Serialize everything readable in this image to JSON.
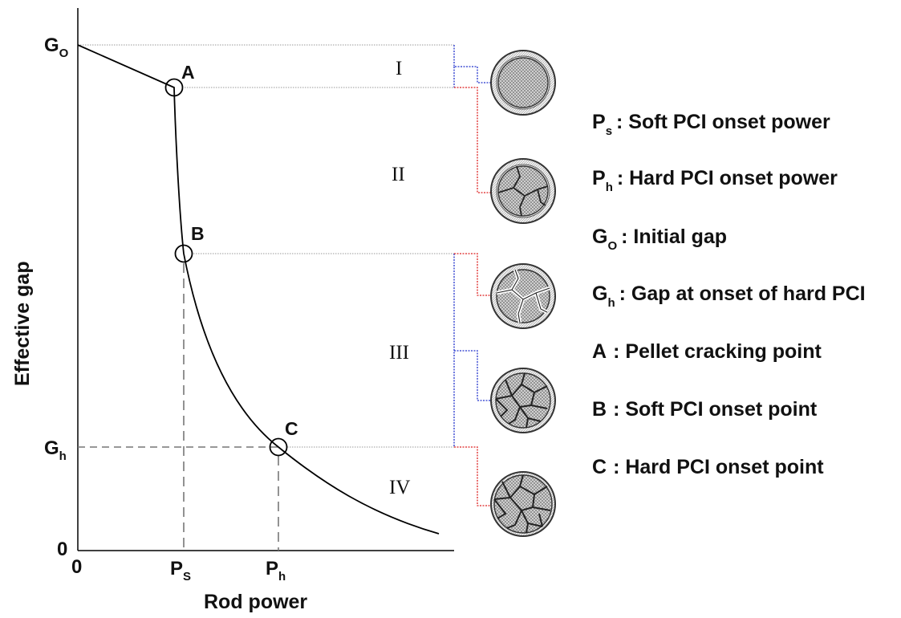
{
  "axes": {
    "y_title": "Effective gap",
    "x_title": "Rod power",
    "y_origin": "0",
    "x_origin": "0",
    "y_ticks": [
      {
        "main": "G",
        "sub": "O"
      },
      {
        "main": "G",
        "sub": "h"
      }
    ],
    "x_ticks": [
      {
        "main": "P",
        "sub": "S"
      },
      {
        "main": "P",
        "sub": "h"
      }
    ]
  },
  "points": [
    "A",
    "B",
    "C"
  ],
  "regions": [
    "I",
    "II",
    "III",
    "IV"
  ],
  "legend": [
    {
      "sym": "P",
      "sub": "s",
      "desc": ": Soft PCI onset power"
    },
    {
      "sym": "P",
      "sub": "h",
      "desc": ": Hard PCI onset power"
    },
    {
      "sym": "G",
      "sub": "O",
      "desc": ": Initial gap"
    },
    {
      "sym": "G",
      "sub": "h",
      "desc": ": Gap at onset of hard PCI"
    },
    {
      "sym": "A",
      "sub": "",
      "desc": ": Pellet cracking point"
    },
    {
      "sym": "B",
      "sub": "",
      "desc": ": Soft PCI onset point"
    },
    {
      "sym": "C",
      "sub": "",
      "desc": ": Hard PCI onset point"
    }
  ],
  "pellets": [
    {
      "state": "intact-pellet"
    },
    {
      "state": "cracked-pellet"
    },
    {
      "state": "relocated-pellet-soft-contact"
    },
    {
      "state": "fragmented-pellet"
    },
    {
      "state": "fragmented-pellet-hard-contact"
    }
  ],
  "colors": {
    "curve": "#000000",
    "guide": "#9a9a9a",
    "dashed": "#777777",
    "bracket_blue": "#2233cc",
    "bracket_red": "#dd2222"
  }
}
